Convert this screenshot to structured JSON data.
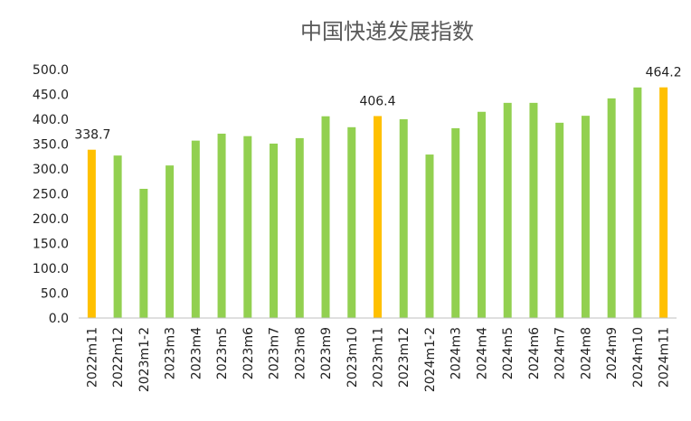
{
  "chart_data": {
    "type": "bar",
    "title": "中国快递发展指数",
    "xlabel": "",
    "ylabel": "",
    "ylim": [
      0,
      500
    ],
    "yticks": [
      "0.0",
      "50.0",
      "100.0",
      "150.0",
      "200.0",
      "250.0",
      "300.0",
      "350.0",
      "400.0",
      "450.0",
      "500.0"
    ],
    "grid": false,
    "legend": "none",
    "categories": [
      "2022m11",
      "2022m12",
      "2023m1-2",
      "2023m3",
      "2023m4",
      "2023m5",
      "2023m6",
      "2023m7",
      "2023m8",
      "2023m9",
      "2023m10",
      "2023m11",
      "2023m12",
      "2024m1-2",
      "2024m3",
      "2024m4",
      "2024m5",
      "2024m6",
      "2024m7",
      "2024m8",
      "2024m9",
      "2024m10",
      "2024m11"
    ],
    "values": [
      338.7,
      327,
      260,
      307,
      357,
      371,
      366,
      351,
      362,
      406,
      384,
      406.4,
      400,
      329,
      382,
      415,
      433,
      433,
      393,
      407,
      442,
      464,
      464.2
    ],
    "highlight": [
      0,
      11,
      22
    ],
    "data_labels": {
      "0": "338.7",
      "11": "406.4",
      "22": "464.2"
    },
    "colors": {
      "normal": "#92D050",
      "highlight": "#FFC000",
      "axis": "#BFBFBF"
    }
  }
}
